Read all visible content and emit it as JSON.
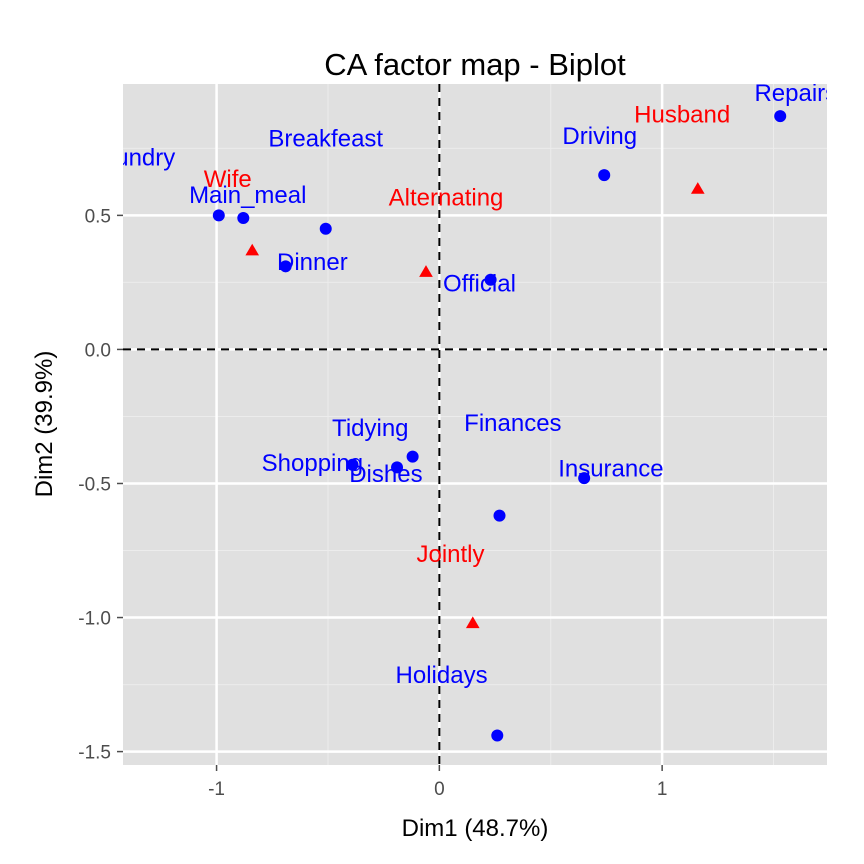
{
  "chart_data": {
    "type": "scatter",
    "title": "CA factor map - Biplot",
    "xlabel": "Dim1 (48.7%)",
    "ylabel": "Dim2 (39.9%)",
    "xlim": [
      -1.42,
      1.74
    ],
    "ylim": [
      -1.55,
      0.99
    ],
    "x_ticks": [
      -1,
      0,
      1
    ],
    "y_ticks": [
      -1.5,
      -1.0,
      -0.5,
      0.0,
      0.5
    ],
    "x_tick_labels": [
      "-1",
      "0",
      "1"
    ],
    "y_tick_labels": [
      "-1.5",
      "-1.0",
      "-0.5",
      "0.0",
      "0.5"
    ],
    "grid": true,
    "reference_lines": {
      "x": 0,
      "y": 0,
      "style": "dashed"
    },
    "colors": {
      "panel": "#e0e0e0",
      "grid_major": "#ffffff",
      "grid_minor": "#ececec",
      "rows": "#0000ff",
      "cols": "#ff0000"
    },
    "series": [
      {
        "marker": "circle",
        "color": "#0000ff",
        "points": [
          {
            "label": "Laundry",
            "x": -0.99,
            "y": 0.5,
            "lx": -1.38,
            "ly": 0.72
          },
          {
            "label": "Main_meal",
            "x": -0.88,
            "y": 0.49,
            "lx": -0.86,
            "ly": 0.58
          },
          {
            "label": "Dinner",
            "x": -0.69,
            "y": 0.31,
            "lx": -0.57,
            "ly": 0.33
          },
          {
            "label": "Breakfeast",
            "x": -0.51,
            "y": 0.45,
            "lx": -0.51,
            "ly": 0.79
          },
          {
            "label": "Tidying",
            "x": -0.12,
            "y": -0.4,
            "lx": -0.31,
            "ly": -0.29
          },
          {
            "label": "Dishes",
            "x": -0.19,
            "y": -0.44,
            "lx": -0.24,
            "ly": -0.46
          },
          {
            "label": "Shopping",
            "x": -0.39,
            "y": -0.43,
            "lx": -0.57,
            "ly": -0.42
          },
          {
            "label": "Official",
            "x": 0.23,
            "y": 0.26,
            "lx": 0.18,
            "ly": 0.25
          },
          {
            "label": "Driving",
            "x": 0.74,
            "y": 0.65,
            "lx": 0.72,
            "ly": 0.8
          },
          {
            "label": "Finances",
            "x": 0.27,
            "y": -0.62,
            "lx": 0.33,
            "ly": -0.27
          },
          {
            "label": "Insurance",
            "x": 0.65,
            "y": -0.48,
            "lx": 0.77,
            "ly": -0.44
          },
          {
            "label": "Repairs",
            "x": 1.53,
            "y": 0.87,
            "lx": 1.6,
            "ly": 0.96
          },
          {
            "label": "Holidays",
            "x": 0.26,
            "y": -1.44,
            "lx": 0.01,
            "ly": -1.21
          }
        ]
      },
      {
        "marker": "triangle",
        "color": "#ff0000",
        "points": [
          {
            "label": "Wife",
            "x": -0.84,
            "y": 0.37,
            "lx": -0.95,
            "ly": 0.64
          },
          {
            "label": "Alternating",
            "x": -0.06,
            "y": 0.29,
            "lx": 0.03,
            "ly": 0.57
          },
          {
            "label": "Jointly",
            "x": 0.15,
            "y": -1.02,
            "lx": 0.05,
            "ly": -0.76
          },
          {
            "label": "Husband",
            "x": 1.16,
            "y": 0.6,
            "lx": 1.09,
            "ly": 0.88
          }
        ]
      }
    ]
  }
}
